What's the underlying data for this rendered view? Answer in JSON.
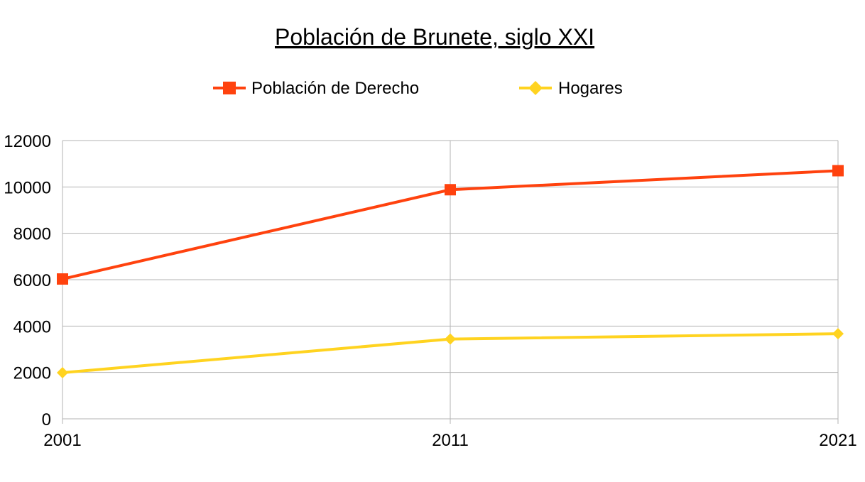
{
  "chart_data": {
    "type": "line",
    "title": "Población de Brunete, siglo XXI",
    "categories": [
      "2001",
      "2011",
      "2021"
    ],
    "series": [
      {
        "name": "Población de Derecho",
        "values": [
          6030,
          9880,
          10700
        ],
        "color": "#ff420e",
        "marker": "square"
      },
      {
        "name": "Hogares",
        "values": [
          1990,
          3440,
          3670
        ],
        "color": "#ffd320",
        "marker": "diamond"
      }
    ],
    "y_ticks": [
      "0",
      "2000",
      "4000",
      "6000",
      "8000",
      "10000",
      "12000"
    ],
    "ylim": [
      0,
      12000
    ],
    "grid": "horizontal",
    "legend_position": "top"
  }
}
